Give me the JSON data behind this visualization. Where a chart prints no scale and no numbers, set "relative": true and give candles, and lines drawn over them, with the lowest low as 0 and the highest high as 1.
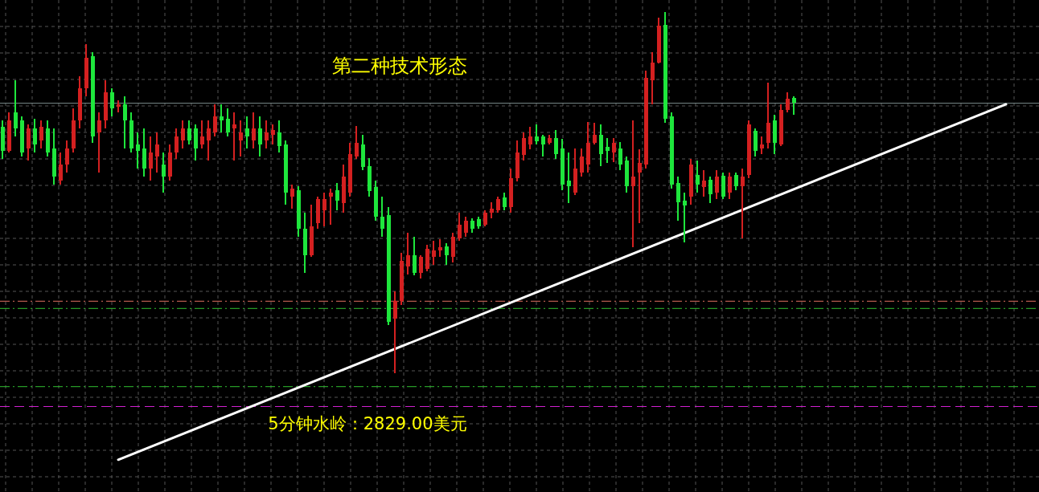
{
  "chart_data": {
    "type": "candlestick",
    "title": "第二种技术形态",
    "relative": true,
    "grid": true,
    "categories": [
      null,
      null,
      null,
      null,
      null,
      null,
      null,
      null,
      null,
      null,
      null,
      null,
      null,
      null,
      null,
      null,
      null,
      null,
      null,
      null,
      null,
      null,
      null,
      null,
      null,
      null,
      null,
      null,
      null,
      null,
      null,
      null,
      null,
      null,
      null,
      null,
      null,
      null,
      null,
      null,
      null,
      null,
      null,
      null,
      null,
      null,
      null,
      null,
      null,
      null,
      null,
      null,
      null,
      null,
      null,
      null,
      null,
      null,
      null,
      null,
      null,
      null,
      null,
      null,
      null,
      null,
      null,
      null,
      null,
      null,
      null,
      null,
      null,
      null,
      null,
      null,
      null,
      null,
      null,
      null,
      null,
      null,
      null,
      null,
      null,
      null,
      null,
      null,
      null,
      null,
      null,
      null,
      null,
      null,
      null,
      null,
      null,
      null,
      null,
      null,
      null,
      null,
      null,
      null,
      null,
      null,
      null,
      null,
      null,
      null,
      null,
      null,
      null,
      null,
      null,
      null,
      null,
      null,
      null,
      null,
      null,
      null,
      null,
      null,
      null,
      null,
      null,
      null,
      null,
      null,
      null,
      null,
      null,
      null,
      null,
      null,
      null,
      null,
      null,
      null,
      null,
      null,
      null,
      null,
      null,
      null,
      null,
      null,
      null,
      null,
      null,
      null,
      null,
      null,
      null,
      null,
      null
    ],
    "ohlc": [
      [
        0.682,
        0.7,
        0.593,
        0.616
      ],
      [
        0.616,
        0.722,
        0.611,
        0.7
      ],
      [
        0.722,
        0.811,
        0.656,
        0.678
      ],
      [
        0.7,
        0.711,
        0.6,
        0.611
      ],
      [
        0.622,
        0.689,
        0.589,
        0.678
      ],
      [
        0.678,
        0.704,
        0.611,
        0.633
      ],
      [
        0.644,
        0.7,
        0.622,
        0.682
      ],
      [
        0.678,
        0.7,
        0.6,
        0.611
      ],
      [
        0.622,
        0.678,
        0.522,
        0.544
      ],
      [
        0.533,
        0.611,
        0.522,
        0.578
      ],
      [
        0.578,
        0.644,
        0.556,
        0.622
      ],
      [
        0.622,
        0.733,
        0.611,
        0.7
      ],
      [
        0.7,
        0.822,
        0.678,
        0.789
      ],
      [
        0.789,
        0.911,
        0.767,
        0.873
      ],
      [
        0.878,
        0.889,
        0.638,
        0.656
      ],
      [
        0.667,
        0.722,
        0.556,
        0.7
      ],
      [
        0.7,
        0.811,
        0.678,
        0.778
      ],
      [
        0.778,
        0.789,
        0.711,
        0.733
      ],
      [
        0.738,
        0.756,
        0.722,
        0.744
      ],
      [
        0.744,
        0.767,
        0.622,
        0.7
      ],
      [
        0.7,
        0.722,
        0.611,
        0.622
      ],
      [
        0.633,
        0.667,
        0.567,
        0.616
      ],
      [
        0.622,
        0.678,
        0.544,
        0.567
      ],
      [
        0.567,
        0.656,
        0.533,
        0.611
      ],
      [
        0.6,
        0.667,
        0.556,
        0.633
      ],
      [
        0.578,
        0.611,
        0.5,
        0.544
      ],
      [
        0.544,
        0.633,
        0.533,
        0.611
      ],
      [
        0.611,
        0.678,
        0.593,
        0.656
      ],
      [
        0.644,
        0.7,
        0.622,
        0.678
      ],
      [
        0.678,
        0.7,
        0.633,
        0.644
      ],
      [
        0.678,
        0.689,
        0.589,
        0.622
      ],
      [
        0.633,
        0.7,
        0.622,
        0.656
      ],
      [
        0.644,
        0.7,
        0.589,
        0.678
      ],
      [
        0.667,
        0.744,
        0.656,
        0.711
      ],
      [
        0.711,
        0.744,
        0.667,
        0.7
      ],
      [
        0.704,
        0.733,
        0.656,
        0.667
      ],
      [
        0.678,
        0.722,
        0.589,
        0.689
      ],
      [
        0.644,
        0.7,
        0.6,
        0.667
      ],
      [
        0.678,
        0.711,
        0.622,
        0.656
      ],
      [
        0.644,
        0.722,
        0.622,
        0.678
      ],
      [
        0.678,
        0.711,
        0.6,
        0.633
      ],
      [
        0.644,
        0.7,
        0.622,
        0.667
      ],
      [
        0.66,
        0.689,
        0.633,
        0.673
      ],
      [
        0.667,
        0.7,
        0.611,
        0.629
      ],
      [
        0.633,
        0.644,
        0.467,
        0.5
      ],
      [
        0.489,
        0.522,
        0.456,
        0.511
      ],
      [
        0.507,
        0.518,
        0.378,
        0.4
      ],
      [
        0.4,
        0.444,
        0.278,
        0.327
      ],
      [
        0.327,
        0.467,
        0.322,
        0.407
      ],
      [
        0.416,
        0.489,
        0.4,
        0.482
      ],
      [
        0.451,
        0.5,
        0.407,
        0.482
      ],
      [
        0.489,
        0.511,
        0.411,
        0.5
      ],
      [
        0.507,
        0.527,
        0.451,
        0.478
      ],
      [
        0.471,
        0.578,
        0.444,
        0.544
      ],
      [
        0.5,
        0.638,
        0.489,
        0.607
      ],
      [
        0.6,
        0.684,
        0.593,
        0.638
      ],
      [
        0.633,
        0.66,
        0.562,
        0.571
      ],
      [
        0.573,
        0.596,
        0.489,
        0.504
      ],
      [
        0.516,
        0.533,
        0.422,
        0.433
      ],
      [
        0.433,
        0.489,
        0.378,
        0.4
      ],
      [
        0.438,
        0.46,
        0.133,
        0.144
      ],
      [
        0.151,
        0.227,
        0.0,
        0.2
      ],
      [
        0.2,
        0.333,
        0.189,
        0.311
      ],
      [
        0.296,
        0.389,
        0.273,
        0.327
      ],
      [
        0.327,
        0.378,
        0.271,
        0.278
      ],
      [
        0.278,
        0.327,
        0.262,
        0.322
      ],
      [
        0.289,
        0.356,
        0.282,
        0.344
      ],
      [
        0.322,
        0.367,
        0.3,
        0.34
      ],
      [
        0.34,
        0.371,
        0.322,
        0.349
      ],
      [
        0.351,
        0.36,
        0.3,
        0.327
      ],
      [
        0.322,
        0.389,
        0.307,
        0.378
      ],
      [
        0.373,
        0.444,
        0.367,
        0.411
      ],
      [
        0.389,
        0.433,
        0.378,
        0.422
      ],
      [
        0.422,
        0.429,
        0.389,
        0.4
      ],
      [
        0.427,
        0.433,
        0.4,
        0.407
      ],
      [
        0.411,
        0.451,
        0.407,
        0.444
      ],
      [
        0.444,
        0.473,
        0.429,
        0.456
      ],
      [
        0.451,
        0.489,
        0.444,
        0.482
      ],
      [
        0.487,
        0.5,
        0.451,
        0.46
      ],
      [
        0.46,
        0.567,
        0.444,
        0.54
      ],
      [
        0.54,
        0.644,
        0.531,
        0.611
      ],
      [
        0.604,
        0.667,
        0.589,
        0.651
      ],
      [
        0.633,
        0.682,
        0.62,
        0.656
      ],
      [
        0.656,
        0.689,
        0.633,
        0.642
      ],
      [
        0.656,
        0.66,
        0.6,
        0.633
      ],
      [
        0.638,
        0.66,
        0.633,
        0.651
      ],
      [
        0.651,
        0.673,
        0.593,
        0.607
      ],
      [
        0.622,
        0.649,
        0.507,
        0.522
      ],
      [
        0.533,
        0.611,
        0.471,
        0.518
      ],
      [
        0.5,
        0.622,
        0.493,
        0.567
      ],
      [
        0.556,
        0.622,
        0.544,
        0.6
      ],
      [
        0.578,
        0.696,
        0.556,
        0.638
      ],
      [
        0.638,
        0.693,
        0.633,
        0.66
      ],
      [
        0.66,
        0.689,
        0.573,
        0.607
      ],
      [
        0.627,
        0.651,
        0.582,
        0.616
      ],
      [
        0.611,
        0.651,
        0.584,
        0.638
      ],
      [
        0.622,
        0.64,
        0.562,
        0.578
      ],
      [
        0.589,
        0.6,
        0.5,
        0.518
      ],
      [
        0.518,
        0.7,
        0.349,
        0.544
      ],
      [
        0.556,
        0.62,
        0.416,
        0.582
      ],
      [
        0.578,
        0.838,
        0.567,
        0.816
      ],
      [
        0.811,
        0.889,
        0.744,
        0.86
      ],
      [
        0.86,
        0.984,
        0.856,
        0.962
      ],
      [
        0.964,
        1.0,
        0.693,
        0.704
      ],
      [
        0.711,
        0.722,
        0.511,
        0.522
      ],
      [
        0.527,
        0.544,
        0.422,
        0.473
      ],
      [
        0.478,
        0.5,
        0.362,
        0.464
      ],
      [
        0.489,
        0.593,
        0.467,
        0.578
      ],
      [
        0.549,
        0.589,
        0.5,
        0.522
      ],
      [
        0.516,
        0.562,
        0.489,
        0.533
      ],
      [
        0.536,
        0.544,
        0.471,
        0.496
      ],
      [
        0.5,
        0.562,
        0.482,
        0.544
      ],
      [
        0.547,
        0.556,
        0.482,
        0.489
      ],
      [
        0.5,
        0.556,
        0.482,
        0.544
      ],
      [
        0.549,
        0.556,
        0.507,
        0.518
      ],
      [
        0.518,
        0.567,
        0.373,
        0.544
      ],
      [
        0.549,
        0.7,
        0.54,
        0.689
      ],
      [
        0.671,
        0.678,
        0.6,
        0.616
      ],
      [
        0.622,
        0.656,
        0.607,
        0.633
      ],
      [
        0.638,
        0.804,
        0.622,
        0.693
      ],
      [
        0.7,
        0.716,
        0.607,
        0.638
      ],
      [
        0.633,
        0.744,
        0.629,
        0.729
      ],
      [
        0.729,
        0.778,
        0.722,
        0.76
      ],
      [
        0.762,
        0.767,
        0.716,
        0.749
      ],
      null,
      null,
      null,
      null,
      null,
      null,
      null,
      null,
      null,
      null,
      null,
      null,
      null,
      null,
      null,
      null,
      null,
      null,
      null,
      null,
      null,
      null,
      null,
      null,
      null,
      null,
      null,
      null,
      null,
      null,
      null,
      null,
      null
    ],
    "colors": [
      "#1ee63c",
      "#d42020",
      "#1ee63c",
      "#1ee63c",
      "#d42020",
      "#1ee63c",
      "#d42020",
      "#1ee63c",
      "#1ee63c",
      "#d42020",
      "#d42020",
      "#d42020",
      "#d42020",
      "#d42020",
      "#1ee63c",
      "#d42020",
      "#d42020",
      "#1ee63c",
      "#d42020",
      "#1ee63c",
      "#1ee63c",
      "#1ee63c",
      "#1ee63c",
      "#d42020",
      "#d42020",
      "#1ee63c",
      "#d42020",
      "#d42020",
      "#d42020",
      "#1ee63c",
      "#1ee63c",
      "#d42020",
      "#d42020",
      "#d42020",
      "#1ee63c",
      "#1ee63c",
      "#d42020",
      "#d42020",
      "#1ee63c",
      "#d42020",
      "#1ee63c",
      "#d42020",
      "#d42020",
      "#1ee63c",
      "#1ee63c",
      "#d42020",
      "#1ee63c",
      "#1ee63c",
      "#d42020",
      "#d42020",
      "#d42020",
      "#d42020",
      "#1ee63c",
      "#d42020",
      "#d42020",
      "#d42020",
      "#1ee63c",
      "#1ee63c",
      "#1ee63c",
      "#1ee63c",
      "#1ee63c",
      "#d42020",
      "#d42020",
      "#d42020",
      "#1ee63c",
      "#d42020",
      "#d42020",
      "#d42020",
      "#d42020",
      "#1ee63c",
      "#d42020",
      "#d42020",
      "#d42020",
      "#1ee63c",
      "#1ee63c",
      "#d42020",
      "#d42020",
      "#d42020",
      "#1ee63c",
      "#d42020",
      "#d42020",
      "#d42020",
      "#d42020",
      "#1ee63c",
      "#1ee63c",
      "#d42020",
      "#1ee63c",
      "#1ee63c",
      "#1ee63c",
      "#d42020",
      "#d42020",
      "#d42020",
      "#d42020",
      "#1ee63c",
      "#1ee63c",
      "#d42020",
      "#1ee63c",
      "#1ee63c",
      "#d42020",
      "#d42020",
      "#d42020",
      "#d42020",
      "#d42020",
      "#1ee63c",
      "#1ee63c",
      "#1ee63c",
      "#1ee63c",
      "#d42020",
      "#1ee63c",
      "#d42020",
      "#1ee63c",
      "#d42020",
      "#1ee63c",
      "#d42020",
      "#1ee63c",
      "#d42020",
      "#d42020",
      "#1ee63c",
      "#d42020",
      "#d42020",
      "#1ee63c",
      "#d42020",
      "#d42020",
      "#1ee63c",
      null,
      null,
      null,
      null,
      null,
      null,
      null,
      null,
      null,
      null,
      null,
      null,
      null,
      null,
      null,
      null,
      null,
      null,
      null,
      null,
      null,
      null,
      null,
      null,
      null,
      null,
      null,
      null,
      null,
      null,
      null,
      null,
      null
    ],
    "series": [
      {
        "type": "line",
        "color": "#ffffff",
        "values": [
          null,
          null,
          null,
          null,
          null,
          null,
          null,
          null,
          null,
          null,
          null,
          null,
          null,
          null,
          null,
          null,
          null,
          null,
          -0.238,
          null,
          null,
          null,
          null,
          null,
          null,
          null,
          null,
          null,
          null,
          null,
          null,
          null,
          null,
          null,
          null,
          null,
          null,
          null,
          null,
          null,
          null,
          null,
          null,
          null,
          null,
          null,
          null,
          null,
          null,
          null,
          null,
          null,
          null,
          null,
          null,
          null,
          null,
          null,
          null,
          null,
          null,
          null,
          null,
          null,
          null,
          null,
          null,
          null,
          null,
          null,
          null,
          null,
          null,
          null,
          null,
          null,
          null,
          null,
          null,
          null,
          null,
          null,
          null,
          null,
          null,
          null,
          null,
          null,
          null,
          null,
          null,
          null,
          null,
          null,
          null,
          null,
          null,
          null,
          null,
          null,
          null,
          null,
          null,
          null,
          null,
          null,
          null,
          null,
          null,
          null,
          null,
          null,
          null,
          null,
          null,
          null,
          null,
          null,
          null,
          null,
          null,
          null,
          null,
          null,
          null,
          null,
          null,
          null,
          null,
          null,
          null,
          null,
          null,
          null,
          null,
          null,
          null,
          null,
          null,
          null,
          null,
          null,
          null,
          null,
          null,
          null,
          null,
          null,
          null,
          null,
          null,
          null,
          null,
          null,
          null,
          null,
          0.744
        ]
      }
    ],
    "ref_lines": [
      {
        "axis": "y",
        "value": 0.747,
        "color": "#7a8a8a",
        "line_style": "solid"
      },
      {
        "axis": "y",
        "value": 0.2,
        "color": "#e07060",
        "line_style": "dashdot"
      },
      {
        "axis": "y",
        "value": 0.18,
        "color": "#30c030",
        "line_style": "dashdot"
      },
      {
        "axis": "y",
        "value": -0.036,
        "color": "#30c030",
        "line_style": "dashdot"
      },
      {
        "axis": "y",
        "value": -0.091,
        "color": "#d020d0",
        "line_style": "dashed",
        "label": "5分钟水岭：2829.00美元"
      }
    ]
  }
}
